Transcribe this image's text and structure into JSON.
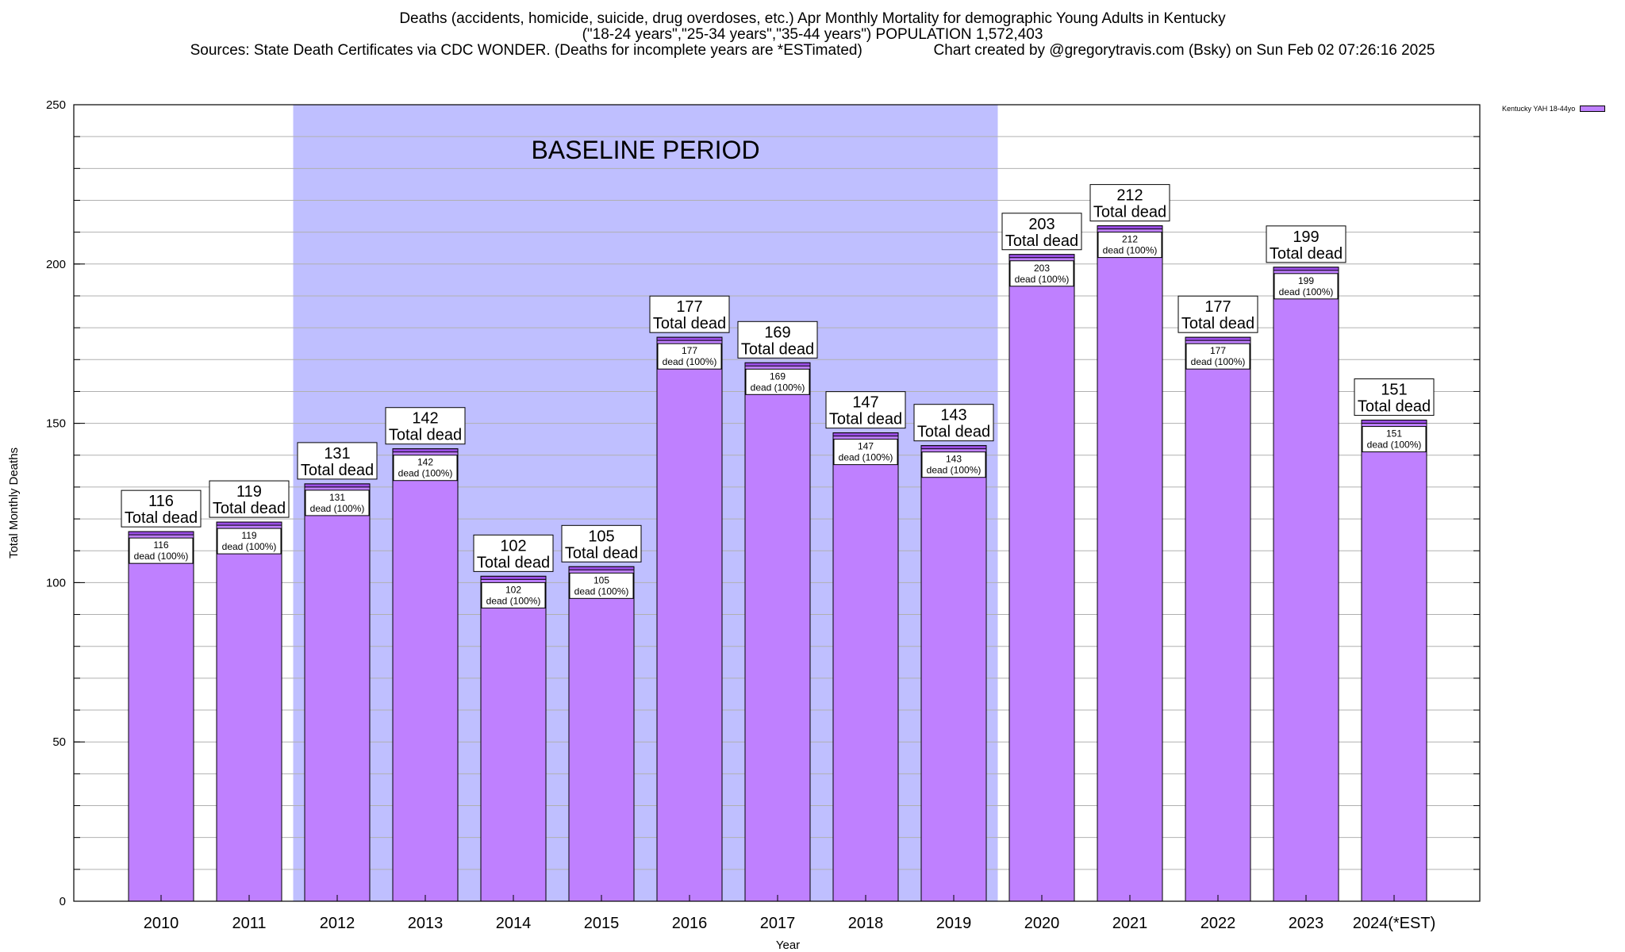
{
  "header": {
    "title_line1": "Deaths (accidents, homicide, suicide, drug overdoses, etc.) Apr Monthly Mortality for demographic Young Adults in Kentucky",
    "title_line2": "(\"18-24 years\",\"25-34 years\",\"35-44 years\") POPULATION 1,572,403",
    "title_line3": "Sources: State Death Certificates via CDC WONDER. (Deaths for incomplete years are *ESTimated)                 Chart created by @gregorytravis.com (Bsky) on Sun Feb 02 07:26:16 2025"
  },
  "legend": {
    "label": "Kentucky YAH 18-44yo"
  },
  "colors": {
    "bar": "#bf80ff",
    "bar_top": "#9b4fe6",
    "baseline_band": "#bfbfff"
  },
  "chart_data": {
    "type": "bar",
    "xlabel": "Year",
    "ylabel": "Total Monthly Deaths",
    "ylim": [
      0,
      250
    ],
    "yticks": [
      0,
      50,
      100,
      150,
      200,
      250
    ],
    "grid": true,
    "legend_position": "top-right",
    "categories": [
      "2010",
      "2011",
      "2012",
      "2013",
      "2014",
      "2015",
      "2016",
      "2017",
      "2018",
      "2019",
      "2020",
      "2021",
      "2022",
      "2023",
      "2024(*EST)"
    ],
    "series": [
      {
        "name": "Kentucky YAH 18-44yo",
        "values": [
          116,
          119,
          131,
          142,
          102,
          105,
          177,
          169,
          147,
          143,
          203,
          212,
          177,
          199,
          151
        ]
      }
    ],
    "total_label": "Total dead",
    "inner_label_suffix": "dead (100%)",
    "baseline_band": {
      "label": "BASELINE PERIOD",
      "from": "2012",
      "to": "2019"
    }
  }
}
